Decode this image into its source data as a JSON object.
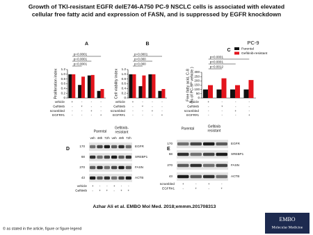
{
  "header": {
    "title_lines": [
      "Growth of TKI-resistant EGFR delE746-A750 PC-9 NSCLC cells is associated with elevated",
      "cellular free fatty acid and expression of FASN, and is suppressed by EGFR knockdown"
    ]
  },
  "chart_data": [
    {
      "type": "bar",
      "panel": "A",
      "y_label": "Proliferation index",
      "series": [
        {
          "name": "Parental",
          "color": "#111111",
          "values": [
            1.0,
            0.55,
            0.95,
            0.3
          ]
        },
        {
          "name": "Gefitinib-resistant",
          "color": "#e3141c",
          "values": [
            1.0,
            0.9,
            0.97,
            0.38
          ]
        }
      ],
      "ylim": [
        0,
        1.2
      ],
      "yticks": [
        {
          "value": 0,
          "label": "0"
        },
        {
          "value": 0.2,
          "label": "0.2"
        },
        {
          "value": 0.4,
          "label": "0.4"
        },
        {
          "value": 0.6,
          "label": "0.6"
        },
        {
          "value": 0.8,
          "label": "0.8"
        },
        {
          "value": 1.0,
          "label": "1.0"
        },
        {
          "value": 1.2,
          "label": "1.2"
        }
      ],
      "annotations": [
        "p=0.0001",
        "p=0.0001",
        "p=0.0001"
      ],
      "treatments": [
        {
          "name": "vehicle",
          "marks": [
            "+",
            "-",
            "-",
            "-"
          ]
        },
        {
          "name": "Gefitinib",
          "marks": [
            "-",
            "+",
            "-",
            "-"
          ]
        },
        {
          "name": "scrambled",
          "marks": [
            "-",
            "-",
            "+",
            "-"
          ]
        },
        {
          "name": "EGFR#1",
          "marks": [
            "-",
            "-",
            "-",
            "+"
          ]
        }
      ]
    },
    {
      "type": "bar",
      "panel": "B",
      "y_label": "Cell viability index",
      "series": [
        {
          "name": "Parental",
          "color": "#111111",
          "values": [
            1.0,
            0.5,
            1.0,
            0.3
          ]
        },
        {
          "name": "Gefitinib-resistant",
          "color": "#e3141c",
          "values": [
            1.0,
            0.95,
            1.0,
            0.38
          ]
        }
      ],
      "ylim": [
        0,
        1.2
      ],
      "yticks": [
        {
          "value": 0,
          "label": "0"
        },
        {
          "value": 0.2,
          "label": "0.2"
        },
        {
          "value": 0.4,
          "label": "0.4"
        },
        {
          "value": 0.6,
          "label": "0.6"
        },
        {
          "value": 0.8,
          "label": "0.8"
        },
        {
          "value": 1.0,
          "label": "1.0"
        },
        {
          "value": 1.2,
          "label": "1.2"
        }
      ],
      "annotations": [
        "p=0.000",
        "p=0.000",
        "p=0.0001"
      ],
      "treatments": [
        {
          "name": "vehicle",
          "marks": [
            "+",
            "-",
            "-",
            "-"
          ]
        },
        {
          "name": "Gefitinib",
          "marks": [
            "-",
            "+",
            "-",
            "-"
          ]
        },
        {
          "name": "scrambled",
          "marks": [
            "-",
            "-",
            "+",
            "-"
          ]
        },
        {
          "name": "EGFR#1",
          "marks": [
            "-",
            "-",
            "-",
            "+"
          ]
        }
      ]
    },
    {
      "type": "bar",
      "panel": "C",
      "y_label": "Free fatty acid, C-8",
      "y_label2": "(% of PC-9P vehicle )",
      "legend_title": "PC-9",
      "series": [
        {
          "name": "Parental",
          "color": "#111111",
          "values": [
            100,
            100,
            100,
            100
          ]
        },
        {
          "name": "Gefitinib-resistant",
          "color": "#e3141c",
          "values": [
            150,
            230,
            150,
            210
          ]
        }
      ],
      "ylim": [
        0,
        300
      ],
      "yticks": [
        0,
        50,
        100,
        150,
        200,
        250,
        300
      ],
      "annotations": [
        "p=0.0012",
        "p<0.0001",
        "p<0.0001"
      ],
      "treatments": [
        {
          "name": "vehicle",
          "marks": [
            "+",
            "-",
            "-",
            "-"
          ]
        },
        {
          "name": "Gefitinib",
          "marks": [
            "-",
            "+",
            "-",
            "-"
          ]
        },
        {
          "name": "scrambled",
          "marks": [
            "-",
            "-",
            "+",
            "-"
          ]
        },
        {
          "name": "EGFR#1",
          "marks": [
            "-",
            "-",
            "-",
            "+"
          ]
        }
      ]
    }
  ],
  "blot_d": {
    "panel": "D",
    "groups": [
      "Parental",
      "Gefitinib-",
      "resistant"
    ],
    "times": [
      "veh",
      "48h",
      "72h",
      "veh",
      "48h",
      "72h"
    ],
    "mw": [
      "170",
      "68",
      "270",
      "43"
    ],
    "proteins": [
      "EGFR",
      "SREBP1",
      "FASN",
      "ACTB"
    ],
    "rows": [
      {
        "name": "vehicle",
        "marks": [
          "+",
          "-",
          "-",
          "+",
          "-",
          "-"
        ]
      },
      {
        "name": "Gefitinib",
        "marks": [
          "-",
          "+",
          "+",
          "-",
          "+",
          "+"
        ]
      }
    ]
  },
  "blot_e": {
    "panel": "E",
    "groups": [
      "Parental",
      "Gefitinib",
      "resistant"
    ],
    "mw": [
      "170",
      "68",
      "270",
      "43"
    ],
    "proteins": [
      "EGFR",
      "SREBP1",
      "FASN",
      "ACTB"
    ],
    "rows": [
      {
        "name": "scrambled",
        "marks": [
          "+",
          "-",
          "+",
          "-"
        ]
      },
      {
        "name": "EGFR#1",
        "marks": [
          "-",
          "+",
          "-",
          "+"
        ]
      }
    ]
  },
  "citation": "Azhar Ali et al. EMBO Mol Med. 2018;emmm.201708313",
  "footer": "© as stated in the article, figure or figure legend",
  "logo": [
    "EMBO",
    "Molecular Medicine"
  ]
}
